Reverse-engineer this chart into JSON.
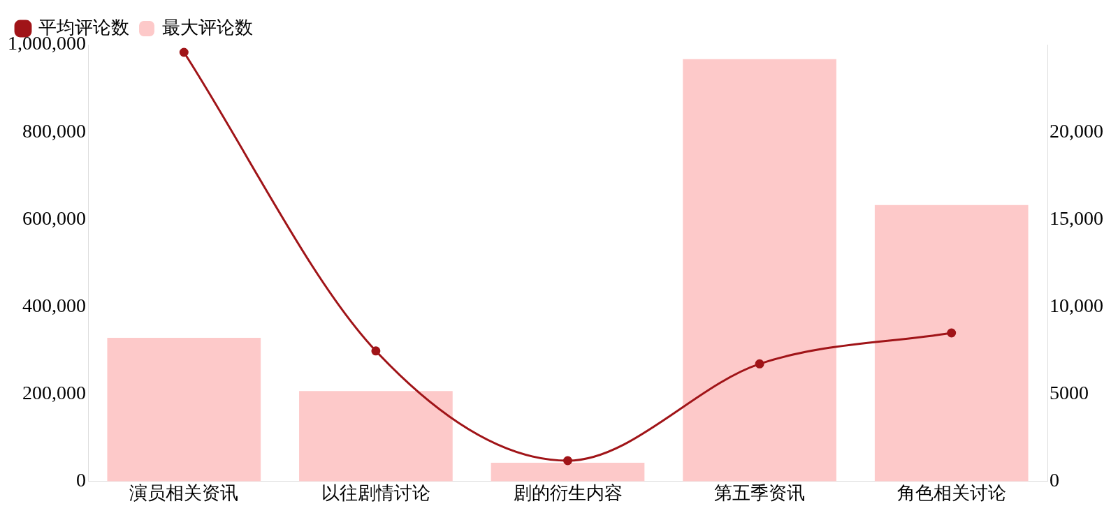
{
  "chart_data": {
    "type": "bar",
    "categories": [
      "演员相关资讯",
      "以往剧情讨论",
      "剧的衍生内容",
      "第五季资讯",
      "角色相关讨论"
    ],
    "series": [
      {
        "name": "平均评论数",
        "type": "line",
        "axis": "y2",
        "color": "#a01418",
        "values": [
          24560,
          7470,
          1190,
          6730,
          8500
        ]
      },
      {
        "name": "最大评论数",
        "color": "#fdc9c9",
        "values": [
          329000,
          207000,
          43000,
          967000,
          633000
        ]
      }
    ],
    "ylim": [
      0,
      1000000
    ],
    "yticks": [
      0,
      {
        "value": 200000,
        "label": "200,000"
      },
      {
        "value": 400000,
        "label": "400,000"
      },
      {
        "value": 600000,
        "label": "600,000"
      },
      {
        "value": 800000,
        "label": "800,000"
      },
      {
        "value": 1000000,
        "label": "1,000,000"
      }
    ],
    "y2lim": [
      0,
      25000
    ],
    "y2ticks": [
      0,
      5000,
      {
        "value": 10000,
        "label": "10,000"
      },
      {
        "value": 15000,
        "label": "15,000"
      },
      {
        "value": 20000,
        "label": "20,000"
      }
    ],
    "grid": false,
    "legend": "top left",
    "marker": "circle",
    "line_style": "solid"
  }
}
